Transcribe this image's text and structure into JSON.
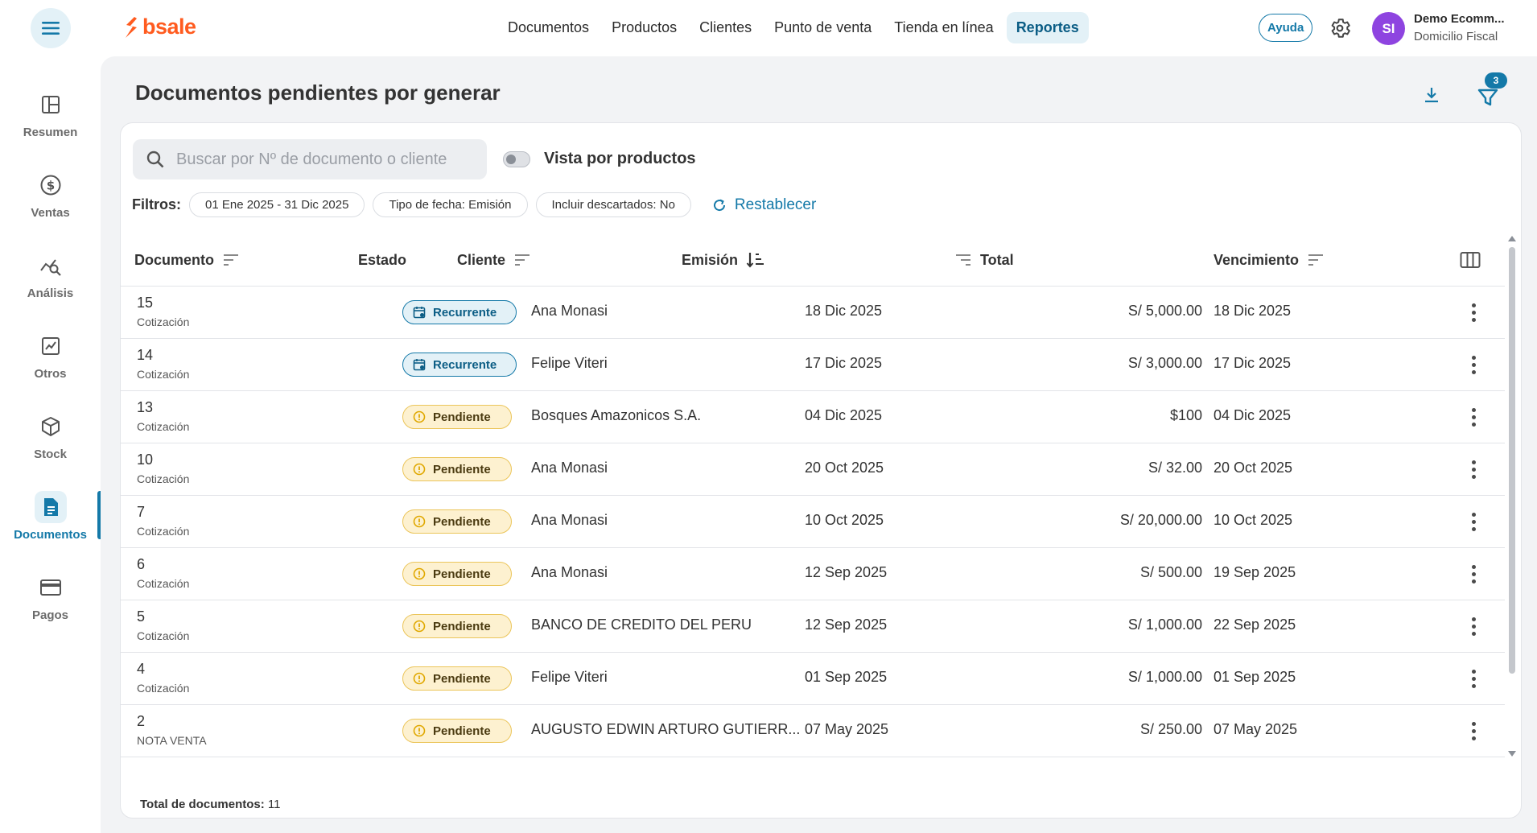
{
  "brand": {
    "logo_text": "bsale",
    "color": "#ff5b1f"
  },
  "nav": {
    "items": [
      {
        "label": "Documentos"
      },
      {
        "label": "Productos"
      },
      {
        "label": "Clientes"
      },
      {
        "label": "Punto de venta"
      },
      {
        "label": "Tienda en línea"
      },
      {
        "label": "Reportes"
      }
    ],
    "active": "Reportes"
  },
  "user": {
    "help_label": "Ayuda",
    "initials": "SI",
    "name": "Demo Ecomm...",
    "subtitle": "Domicilio Fiscal",
    "avatar_color": "#8e44e0"
  },
  "sidebar": {
    "items": [
      {
        "label": "Resumen",
        "icon": "dashboard-icon"
      },
      {
        "label": "Ventas",
        "icon": "dollar-icon"
      },
      {
        "label": "Análisis",
        "icon": "analysis-icon"
      },
      {
        "label": "Otros",
        "icon": "chart-icon"
      },
      {
        "label": "Stock",
        "icon": "box-icon"
      },
      {
        "label": "Documentos",
        "icon": "document-icon"
      },
      {
        "label": "Pagos",
        "icon": "card-icon"
      }
    ],
    "active": "Documentos"
  },
  "page": {
    "title": "Documentos pendientes por generar",
    "filter_count": "3"
  },
  "search": {
    "placeholder": "Buscar por Nº de documento o cliente",
    "value": ""
  },
  "view_toggle": {
    "label": "Vista por productos",
    "on": false
  },
  "filters": {
    "label": "Filtros:",
    "chips": [
      "01 Ene 2025 - 31 Dic 2025",
      "Tipo de fecha: Emisión",
      "Incluir descartados: No"
    ],
    "reset_label": "Restablecer"
  },
  "table": {
    "headers": {
      "documento": "Documento",
      "estado": "Estado",
      "cliente": "Cliente",
      "emision": "Emisión",
      "total": "Total",
      "vencimiento": "Vencimiento"
    },
    "rows": [
      {
        "numero": "15",
        "tipo": "Cotización",
        "estado": "Recurrente",
        "cliente": "Ana Monasi",
        "emision": "18 Dic 2025",
        "total": "S/ 5,000.00",
        "vencimiento": "18 Dic 2025"
      },
      {
        "numero": "14",
        "tipo": "Cotización",
        "estado": "Recurrente",
        "cliente": "Felipe Viteri",
        "emision": "17 Dic 2025",
        "total": "S/ 3,000.00",
        "vencimiento": "17 Dic 2025"
      },
      {
        "numero": "13",
        "tipo": "Cotización",
        "estado": "Pendiente",
        "cliente": "Bosques Amazonicos S.A.",
        "emision": "04 Dic 2025",
        "total": "$100",
        "vencimiento": "04 Dic 2025"
      },
      {
        "numero": "10",
        "tipo": "Cotización",
        "estado": "Pendiente",
        "cliente": "Ana Monasi",
        "emision": "20 Oct 2025",
        "total": "S/ 32.00",
        "vencimiento": "20 Oct 2025"
      },
      {
        "numero": "7",
        "tipo": "Cotización",
        "estado": "Pendiente",
        "cliente": "Ana Monasi",
        "emision": "10 Oct 2025",
        "total": "S/ 20,000.00",
        "vencimiento": "10 Oct 2025"
      },
      {
        "numero": "6",
        "tipo": "Cotización",
        "estado": "Pendiente",
        "cliente": "Ana Monasi",
        "emision": "12 Sep 2025",
        "total": "S/ 500.00",
        "vencimiento": "19 Sep 2025"
      },
      {
        "numero": "5",
        "tipo": "Cotización",
        "estado": "Pendiente",
        "cliente": "BANCO DE CREDITO DEL PERU",
        "emision": "12 Sep 2025",
        "total": "S/ 1,000.00",
        "vencimiento": "22 Sep 2025"
      },
      {
        "numero": "4",
        "tipo": "Cotización",
        "estado": "Pendiente",
        "cliente": "Felipe Viteri",
        "emision": "01 Sep 2025",
        "total": "S/ 1,000.00",
        "vencimiento": "01 Sep 2025"
      },
      {
        "numero": "2",
        "tipo": "NOTA VENTA",
        "estado": "Pendiente",
        "cliente": "AUGUSTO EDWIN ARTURO GUTIERR...",
        "emision": "07 May 2025",
        "total": "S/ 250.00",
        "vencimiento": "07 May 2025"
      }
    ]
  },
  "footer": {
    "total_label": "Total de documentos:",
    "total_value": "11"
  },
  "colors": {
    "accent": "#1479a8",
    "recurrente_bg": "#e3f1f7",
    "pendiente_bg": "#fdf1d0",
    "pendiente_icon": "#e0a800"
  }
}
